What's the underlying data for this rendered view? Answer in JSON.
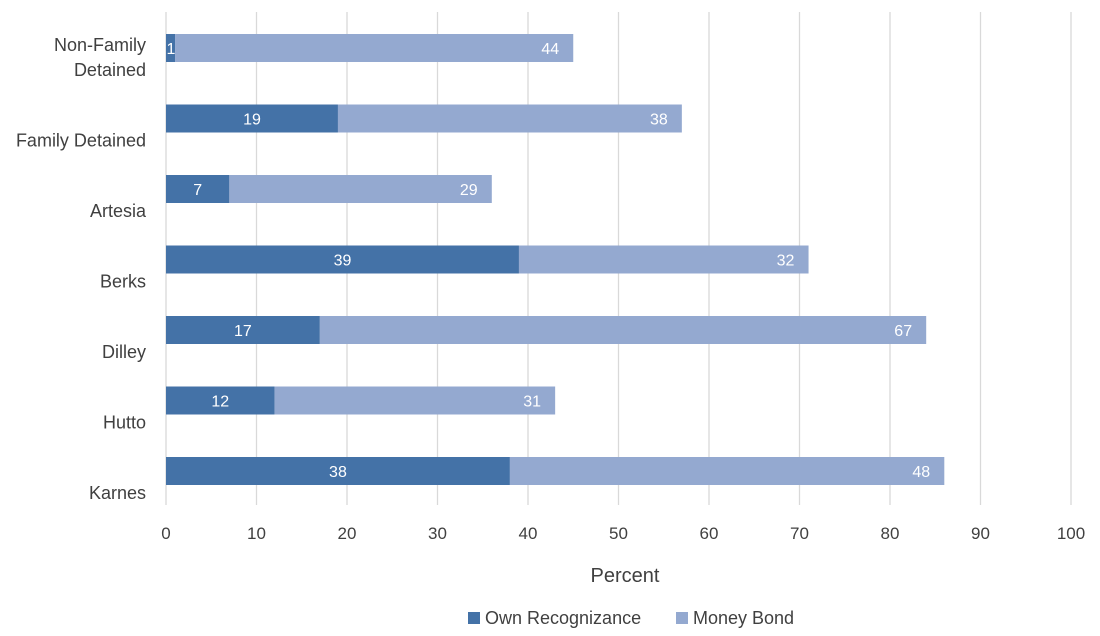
{
  "chart_data": {
    "type": "bar",
    "orientation": "horizontal",
    "stacked": true,
    "title": "",
    "xlabel": "Percent",
    "ylabel": "",
    "xlim": [
      0,
      100
    ],
    "x_ticks": [
      0,
      10,
      20,
      30,
      40,
      50,
      60,
      70,
      80,
      90,
      100
    ],
    "grid": true,
    "legend_position": "bottom",
    "categories": [
      [
        "Non-Family",
        "Detained"
      ],
      [
        "Family Detained"
      ],
      [
        "Artesia"
      ],
      [
        "Berks"
      ],
      [
        "Dilley"
      ],
      [
        "Hutto"
      ],
      [
        "Karnes"
      ]
    ],
    "series": [
      {
        "name": "Own Recognizance",
        "color": "#4472a7",
        "values": [
          1,
          19,
          7,
          39,
          17,
          12,
          38
        ]
      },
      {
        "name": "Money Bond",
        "color": "#94a9d0",
        "values": [
          44,
          38,
          29,
          32,
          67,
          31,
          48
        ]
      }
    ]
  }
}
